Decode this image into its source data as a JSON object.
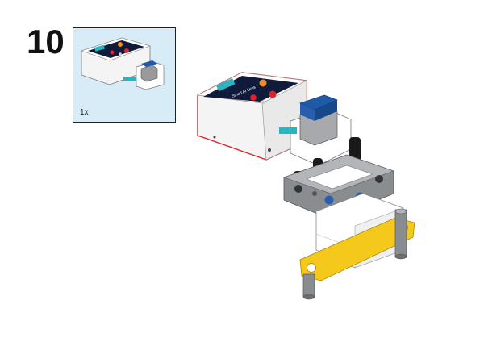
{
  "step": {
    "number": "10"
  },
  "callout": {
    "quantity": "1x",
    "background": "#d8ecf8"
  },
  "device": {
    "screen_badge_text": "Huskylens",
    "screen_title": "Smart AI Lens",
    "highlight_color": "#e0242b"
  },
  "colors": {
    "device_body": "#f4f4f4",
    "screen": "#101a3a",
    "camera_blue": "#1e5aa8",
    "beam_gray": "#8a8d90",
    "beam_yellow": "#f5c91c",
    "pin_black": "#1a1a1a",
    "pin_blue": "#2a5fb0"
  }
}
